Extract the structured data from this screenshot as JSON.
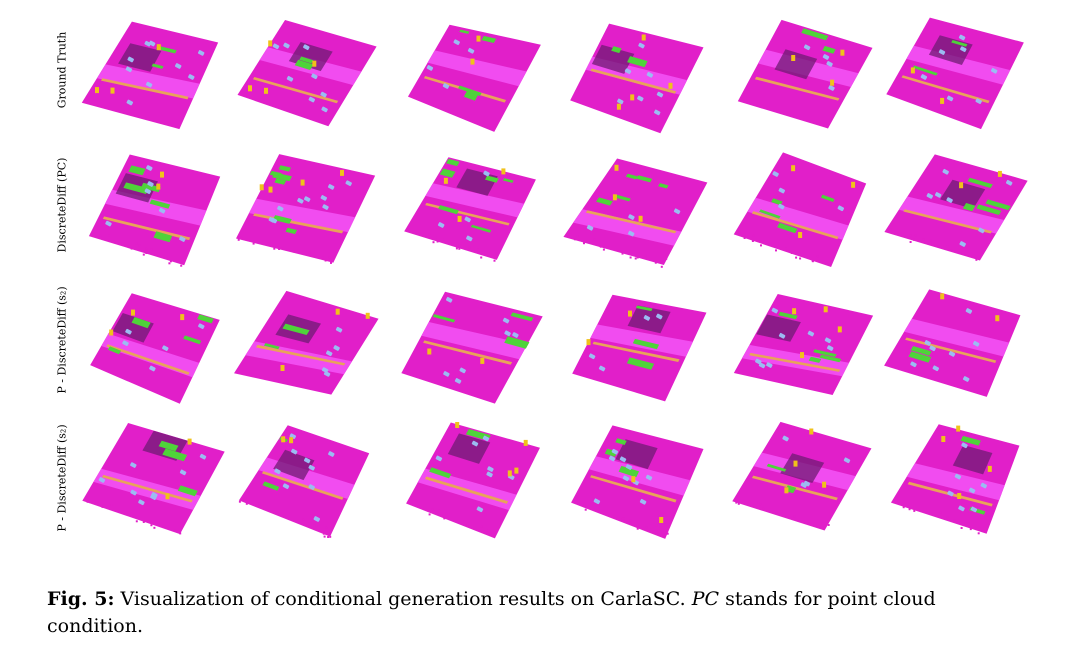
{
  "figure": {
    "rows": [
      {
        "label": "Ground Truth"
      },
      {
        "label": "DiscreteDiff (PC)"
      },
      {
        "label": "P - DiscreteDiff (s₂)"
      },
      {
        "label": "P - DiscreteDiff (s₂)"
      }
    ],
    "columns": 6,
    "colors": {
      "road": "#e11fc9",
      "sidewalk": "#f14cf0",
      "building_dark": "#6f1b73",
      "vegetation": "#4fd33a",
      "vehicle": "#9bbcf2",
      "pole_sign": "#f0c21a",
      "terrain": "#e8a35a"
    }
  },
  "caption": {
    "label": "Fig. 5:",
    "text1": "Visualization of conditional generation results on CarlaSC.",
    "abbr": "PC",
    "text2": "stands for point cloud condition."
  }
}
